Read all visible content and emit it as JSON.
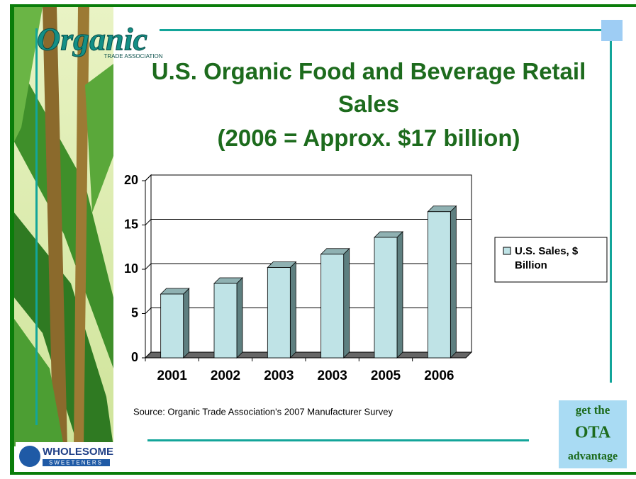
{
  "chart_data": {
    "type": "bar3d",
    "title": "U.S. Organic Food and Beverage Retail Sales",
    "subtitle": "(2006 = Approx. $17 billion)",
    "categories": [
      "2001",
      "2002",
      "2003",
      "2003",
      "2005",
      "2006"
    ],
    "series": [
      {
        "name": "U.S. Sales, $ Billion",
        "color": "#bfe3e6",
        "values": [
          7.2,
          8.4,
          10.2,
          11.7,
          13.6,
          16.5
        ]
      }
    ],
    "ylim": [
      0,
      20
    ],
    "yticks": [
      0,
      5,
      10,
      15,
      20
    ],
    "grid": true,
    "legend": "right",
    "source": "Source: Organic Trade Association's 2007 Manufacturer Survey"
  },
  "logos": {
    "organic": "Organic",
    "organic_sub": "TRADE ASSOCIATION",
    "wholesome": "WHOLESOME",
    "sweeteners": "SWEETENERS",
    "badge": [
      "get the",
      "OTA",
      "advantage"
    ]
  }
}
